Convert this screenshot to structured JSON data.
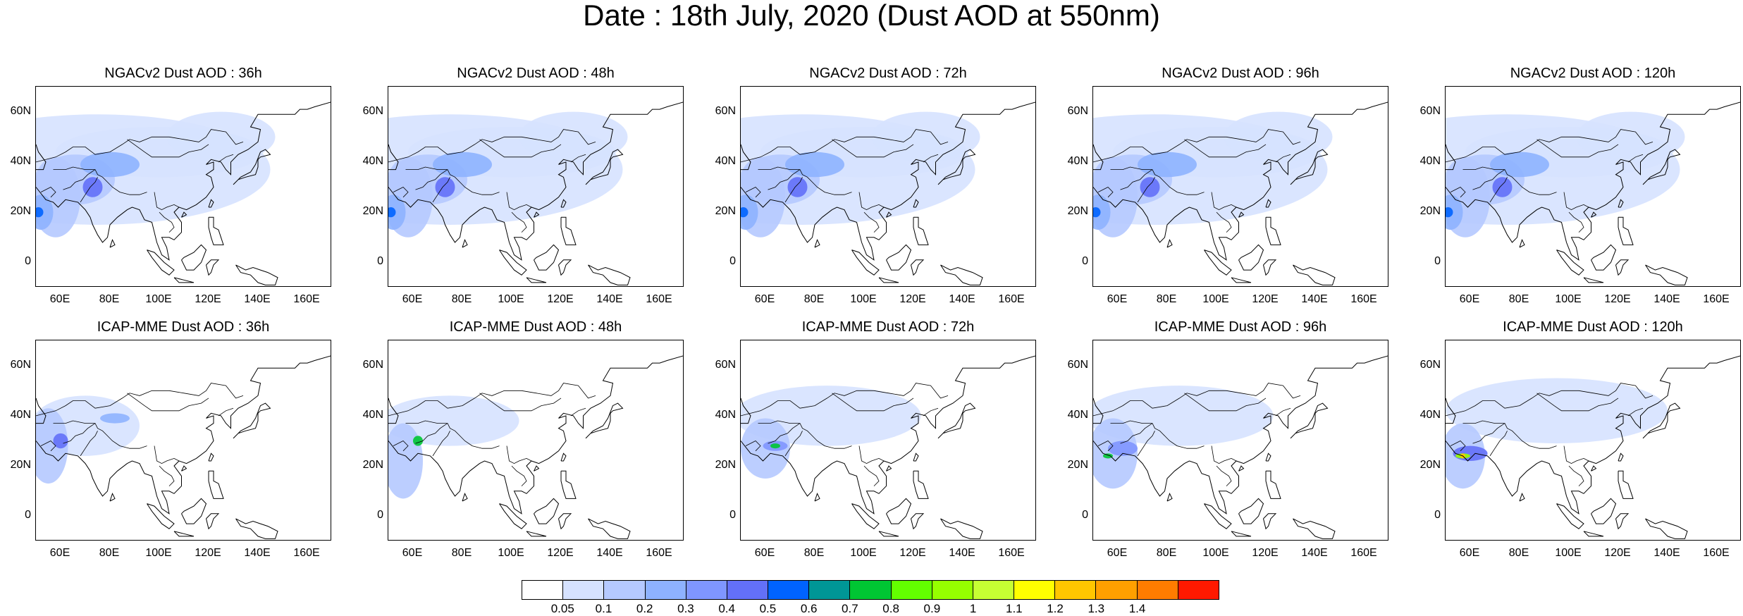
{
  "title": "Date : 18th July, 2020 (Dust AOD at 550nm)",
  "lat_ticks": [
    "60N",
    "40N",
    "20N",
    "0"
  ],
  "lon_ticks": [
    "60E",
    "80E",
    "100E",
    "120E",
    "140E",
    "160E"
  ],
  "panels": [
    {
      "title": "NGACv2 Dust AOD : 36h",
      "model": "NGACv2",
      "lead_hours": 36
    },
    {
      "title": "NGACv2 Dust AOD : 48h",
      "model": "NGACv2",
      "lead_hours": 48
    },
    {
      "title": "NGACv2 Dust AOD : 72h",
      "model": "NGACv2",
      "lead_hours": 72
    },
    {
      "title": "NGACv2 Dust AOD : 96h",
      "model": "NGACv2",
      "lead_hours": 96
    },
    {
      "title": "NGACv2 Dust AOD : 120h",
      "model": "NGACv2",
      "lead_hours": 120
    },
    {
      "title": "ICAP-MME Dust AOD : 36h",
      "model": "ICAP-MME",
      "lead_hours": 36
    },
    {
      "title": "ICAP-MME Dust AOD : 48h",
      "model": "ICAP-MME",
      "lead_hours": 48
    },
    {
      "title": "ICAP-MME Dust AOD : 72h",
      "model": "ICAP-MME",
      "lead_hours": 72
    },
    {
      "title": "ICAP-MME Dust AOD : 96h",
      "model": "ICAP-MME",
      "lead_hours": 96
    },
    {
      "title": "ICAP-MME Dust AOD : 120h",
      "model": "ICAP-MME",
      "lead_hours": 120
    }
  ],
  "colorbar": {
    "labels": [
      "0.05",
      "0.1",
      "0.2",
      "0.3",
      "0.4",
      "0.5",
      "0.6",
      "0.7",
      "0.8",
      "0.9",
      "1",
      "1.1",
      "1.2",
      "1.3",
      "1.4"
    ],
    "colors": [
      "#ffffff",
      "#d6e2ff",
      "#b5c9ff",
      "#8eb2ff",
      "#7f96ff",
      "#6370f8",
      "#0063ff",
      "#009696",
      "#00c633",
      "#63ff00",
      "#96ff00",
      "#c6ff33",
      "#ffff00",
      "#ffc600",
      "#ffa000",
      "#ff7c00",
      "#ff1900"
    ]
  },
  "map_extent": {
    "lon": [
      50,
      170
    ],
    "lat": [
      -10,
      70
    ]
  }
}
